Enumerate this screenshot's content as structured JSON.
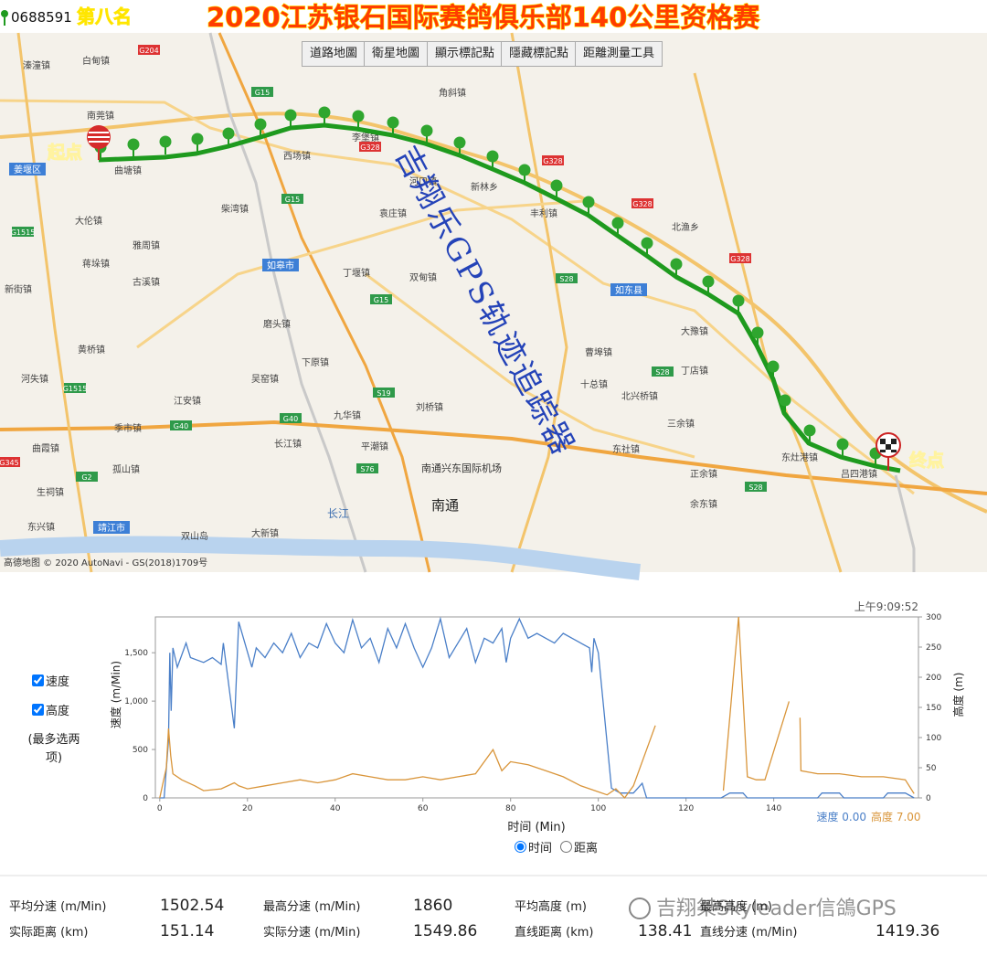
{
  "header": {
    "id": "0688591",
    "rank": "第八名",
    "title": "2020江苏银石国际赛鸽俱乐部140公里资格赛"
  },
  "map": {
    "buttons": [
      "道路地圖",
      "衛星地圖",
      "顯示標記點",
      "隱藏標記點",
      "距離測量工具"
    ],
    "start_label": "起点",
    "end_label": "终点",
    "watermark": "吉翔乐GPS轨迹追踪器",
    "attribution": "高德地图 © 2020 AutoNavi - GS(2018)1709号",
    "cities": [
      "姜堰区",
      "如皋市",
      "如东县",
      "靖江市"
    ],
    "major": [
      "南通"
    ],
    "water": [
      "长江"
    ],
    "airport": [
      "南通兴东国际机场"
    ],
    "towns": [
      "溱潼镇",
      "白甸镇",
      "南莞镇",
      "曲塘镇",
      "大伦镇",
      "雅周镇",
      "蒋垛镇",
      "古溪镇",
      "新街镇",
      "黄桥镇",
      "河失镇",
      "江安镇",
      "季市镇",
      "曲霞镇",
      "孤山镇",
      "生祠镇",
      "东兴镇",
      "双山岛",
      "大新镇",
      "西场镇",
      "李堡镇",
      "新林乡",
      "丰利镇",
      "袁庄镇",
      "双甸镇",
      "丁堰镇",
      "磨头镇",
      "下原镇",
      "吴窑镇",
      "刘桥镇",
      "长江镇",
      "平潮镇",
      "九华镇",
      "曹埠镇",
      "十总镇",
      "北兴桥镇",
      "三余镇",
      "丁店镇",
      "东灶港镇",
      "吕四港镇",
      "正余镇",
      "余东镇",
      "东社镇",
      "大豫镇",
      "北渔乡",
      "角斜镇",
      "河口镇",
      "柴湾镇"
    ],
    "shields": [
      "G204",
      "G15",
      "G328",
      "G328",
      "G328",
      "G328",
      "S28",
      "G15",
      "S19",
      "G40",
      "G40",
      "S28",
      "S28",
      "G1515",
      "G1515",
      "G2",
      "G345",
      "S76",
      "G15"
    ]
  },
  "panel": {
    "checkboxes": [
      "速度",
      "高度"
    ],
    "note": "(最多选两项)",
    "radios": [
      "时间",
      "距离"
    ]
  },
  "chart_data": {
    "type": "line",
    "time": "上午9:09:52",
    "xlabel": "时间 (Min)",
    "ylabel": "速度 (m/Min)",
    "y2label": "高度 (m)",
    "current": [
      "速度 0.00",
      "高度 7.00"
    ],
    "xlim": [
      -1,
      173
    ],
    "xticks": [
      0,
      20,
      40,
      60,
      80,
      100,
      120,
      140
    ],
    "ylim": [
      0,
      1870
    ],
    "yticks": [
      0,
      500,
      {
        "value": 1000,
        "label": "1,000"
      },
      {
        "value": 1500,
        "label": "1,500"
      }
    ],
    "y2lim": [
      0,
      300
    ],
    "y2ticks": [
      0,
      50,
      100,
      150,
      200,
      250,
      300
    ],
    "series": [
      {
        "name": "速度",
        "color": "#4a7fc8",
        "x": [
          0,
          1,
          2,
          2.3,
          2.6,
          3,
          4,
          6,
          7,
          10,
          12,
          14,
          14.5,
          17,
          18,
          21,
          22,
          24,
          26,
          28,
          30,
          32,
          34,
          36,
          38,
          40,
          42,
          44,
          46,
          48,
          50,
          52,
          54,
          56,
          58,
          60,
          62,
          64,
          66,
          68,
          70,
          72,
          74,
          76,
          78,
          79,
          80,
          82,
          84,
          86,
          88,
          90,
          92,
          94,
          98,
          98.5,
          99,
          100,
          103,
          105,
          108,
          110,
          111,
          128,
          130,
          133,
          134,
          150,
          151,
          155,
          156,
          165,
          166,
          170,
          172
        ],
        "values": [
          0,
          0,
          600,
          1500,
          900,
          1550,
          1350,
          1600,
          1450,
          1400,
          1450,
          1380,
          1600,
          720,
          1820,
          1350,
          1550,
          1450,
          1600,
          1500,
          1700,
          1450,
          1600,
          1550,
          1800,
          1600,
          1500,
          1840,
          1550,
          1650,
          1400,
          1750,
          1550,
          1800,
          1550,
          1350,
          1550,
          1850,
          1450,
          1600,
          1750,
          1400,
          1650,
          1600,
          1750,
          1400,
          1650,
          1850,
          1650,
          1700,
          1650,
          1600,
          1700,
          1650,
          1550,
          1300,
          1650,
          1500,
          100,
          50,
          50,
          150,
          0,
          0,
          50,
          50,
          0,
          0,
          50,
          50,
          0,
          0,
          50,
          50,
          0
        ]
      },
      {
        "name": "高度",
        "color": "#d9953a",
        "axis": "y2",
        "x": [
          0,
          1.5,
          2,
          2.5,
          3,
          5,
          8,
          10,
          14,
          17,
          18,
          20,
          24,
          28,
          32,
          36,
          40,
          44,
          48,
          52,
          56,
          60,
          64,
          68,
          72,
          76,
          78,
          80,
          84,
          88,
          92,
          96,
          100,
          102,
          104,
          106,
          108,
          113,
          null,
          128.5,
          132,
          134,
          136,
          138,
          143.5,
          null,
          146,
          146.2,
          150,
          155,
          160,
          165,
          170,
          172
        ],
        "values": [
          0,
          50,
          115,
          70,
          40,
          30,
          20,
          12,
          15,
          25,
          20,
          15,
          20,
          25,
          30,
          25,
          30,
          40,
          35,
          30,
          30,
          35,
          30,
          35,
          40,
          80,
          45,
          60,
          55,
          45,
          35,
          20,
          10,
          5,
          15,
          0,
          20,
          120,
          null,
          12,
          300,
          35,
          30,
          30,
          160,
          null,
          133,
          45,
          40,
          40,
          35,
          35,
          30,
          7
        ]
      }
    ]
  },
  "stats": {
    "rows": [
      [
        "平均分速 (m/Min)",
        1502.54,
        "最高分速 (m/Min)",
        1860,
        "平均高度 (m)",
        "最高高度 (m)"
      ],
      [
        "实际距离 (km)",
        151.14,
        "实际分速 (m/Min)",
        1549.86,
        "直线距离 (km)",
        138.41,
        "直线分速 (m/Min)",
        1419.36
      ]
    ],
    "watermark": "吉翔桀Skyleader信鴿GPS"
  }
}
